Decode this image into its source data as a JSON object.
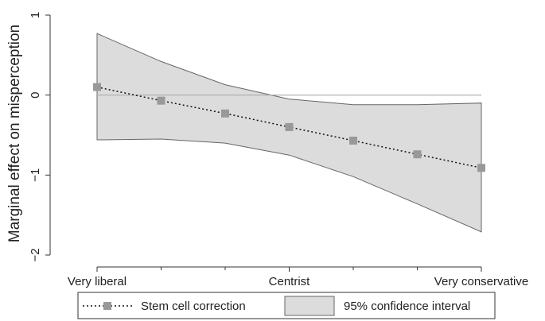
{
  "chart_data": {
    "type": "line",
    "title": "",
    "xlabel": "",
    "ylabel": "Marginal effect on misperception",
    "x": [
      1,
      2,
      3,
      4,
      5,
      6,
      7
    ],
    "x_tick_labels": [
      {
        "x": 1,
        "label": "Very liberal"
      },
      {
        "x": 4,
        "label": "Centrist"
      },
      {
        "x": 7,
        "label": "Very conservative"
      }
    ],
    "x_minor_ticks": [
      2,
      3,
      5,
      6
    ],
    "xlim": [
      1,
      7
    ],
    "ylim": [
      -2,
      1
    ],
    "y_ticks": [
      1,
      0,
      -1,
      -2
    ],
    "y_tick_labels": [
      "1",
      "0",
      "−1",
      "−2"
    ],
    "reference_line_y": 0,
    "series": [
      {
        "name": "Stem cell correction",
        "type": "line",
        "style": "dotted",
        "marker": "square",
        "color": "#111111",
        "marker_color": "#999999",
        "values": [
          0.1,
          -0.07,
          -0.23,
          -0.4,
          -0.57,
          -0.74,
          -0.91
        ]
      },
      {
        "name": "95% confidence interval",
        "type": "area",
        "lower": [
          -0.56,
          -0.55,
          -0.6,
          -0.75,
          -1.02,
          -1.36,
          -1.71
        ],
        "upper": [
          0.77,
          0.42,
          0.13,
          -0.05,
          -0.12,
          -0.12,
          -0.1
        ],
        "fill": "#dcdcdc",
        "stroke": "#666666"
      }
    ],
    "legend_position": "bottom",
    "grid": false
  }
}
